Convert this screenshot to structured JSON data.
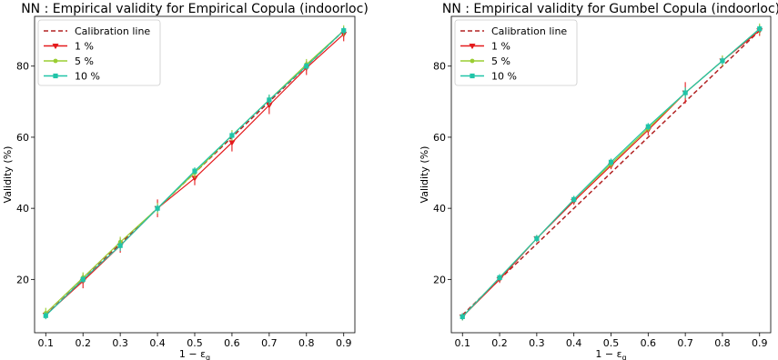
{
  "chart_data": [
    {
      "type": "line",
      "title": "NN : Empirical validity for Empirical Copula (indoorloc)",
      "xlabel": "1 − ε",
      "xlabel_sub": "g",
      "ylabel": "Validity (%)",
      "xlim": [
        0.07,
        0.93
      ],
      "ylim": [
        5,
        94
      ],
      "xticks": [
        "0.1",
        "0.2",
        "0.3",
        "0.4",
        "0.5",
        "0.6",
        "0.7",
        "0.8",
        "0.9"
      ],
      "yticks": [
        "20",
        "40",
        "60",
        "80"
      ],
      "x": [
        0.1,
        0.2,
        0.3,
        0.4,
        0.5,
        0.6,
        0.7,
        0.8,
        0.9
      ],
      "legend_position": "top-left",
      "series": [
        {
          "name": "Calibration line",
          "style": "dashed",
          "marker": "none",
          "color": "#b22222",
          "values": [
            10,
            20,
            30,
            40,
            50,
            60,
            70,
            80,
            90
          ]
        },
        {
          "name": "1 %",
          "style": "solid",
          "marker": "triangle-down",
          "color": "#e41a1c",
          "values": [
            10.0,
            19.5,
            29.5,
            40.0,
            48.5,
            58.5,
            69.0,
            79.5,
            89.0
          ],
          "error": [
            1.0,
            2.0,
            2.0,
            2.5,
            2.0,
            2.5,
            2.5,
            2.0,
            2.0
          ]
        },
        {
          "name": "5 %",
          "style": "solid",
          "marker": "circle",
          "color": "#9acd32",
          "values": [
            10.5,
            20.5,
            30.5,
            40.0,
            50.0,
            60.5,
            70.5,
            80.5,
            90.0
          ],
          "error": [
            1.5,
            1.5,
            1.5,
            1.5,
            1.5,
            1.5,
            1.5,
            1.5,
            1.5
          ]
        },
        {
          "name": "10 %",
          "style": "solid",
          "marker": "square",
          "color": "#20c4a8",
          "values": [
            9.8,
            20.0,
            29.5,
            40.0,
            50.5,
            60.5,
            70.5,
            80.0,
            90.0
          ],
          "error": [
            1.0,
            1.0,
            1.5,
            1.0,
            1.0,
            1.0,
            1.5,
            1.0,
            1.0
          ]
        }
      ]
    },
    {
      "type": "line",
      "title": "NN : Empirical validity for Gumbel Copula (indoorloc)",
      "xlabel": "1 − ε",
      "xlabel_sub": "g",
      "ylabel": "Validity (%)",
      "xlim": [
        0.07,
        0.93
      ],
      "ylim": [
        5,
        94
      ],
      "xticks": [
        "0.1",
        "0.2",
        "0.3",
        "0.4",
        "0.5",
        "0.6",
        "0.7",
        "0.8",
        "0.9"
      ],
      "yticks": [
        "20",
        "40",
        "60",
        "80"
      ],
      "x": [
        0.1,
        0.2,
        0.3,
        0.4,
        0.5,
        0.6,
        0.7,
        0.8,
        0.9
      ],
      "legend_position": "top-left",
      "series": [
        {
          "name": "Calibration line",
          "style": "dashed",
          "marker": "none",
          "color": "#b22222",
          "values": [
            10,
            20,
            30,
            40,
            50,
            60,
            70,
            80,
            90
          ]
        },
        {
          "name": "1 %",
          "style": "solid",
          "marker": "triangle-down",
          "color": "#e41a1c",
          "values": [
            9.5,
            20.0,
            31.5,
            42.0,
            52.0,
            62.0,
            72.5,
            81.5,
            90.0
          ],
          "error": [
            1.0,
            1.0,
            1.0,
            1.0,
            1.0,
            1.5,
            3.0,
            1.5,
            1.5
          ]
        },
        {
          "name": "5 %",
          "style": "solid",
          "marker": "circle",
          "color": "#9acd32",
          "values": [
            9.5,
            20.5,
            31.5,
            42.5,
            52.5,
            62.5,
            72.5,
            81.5,
            90.5
          ],
          "error": [
            1.0,
            1.0,
            1.0,
            1.0,
            1.0,
            1.0,
            1.5,
            1.5,
            1.5
          ]
        },
        {
          "name": "10 %",
          "style": "solid",
          "marker": "square",
          "color": "#20c4a8",
          "values": [
            9.5,
            20.5,
            31.5,
            42.5,
            53.0,
            63.0,
            72.5,
            81.5,
            90.5
          ],
          "error": [
            1.0,
            1.0,
            1.0,
            1.0,
            1.0,
            1.0,
            1.5,
            1.0,
            1.0
          ]
        }
      ]
    }
  ]
}
